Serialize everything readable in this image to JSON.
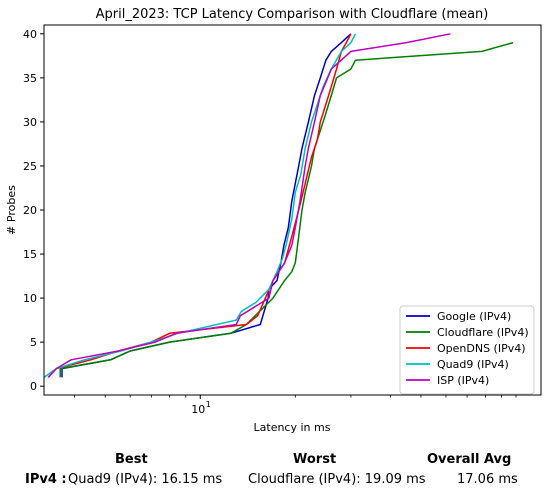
{
  "chart_data": {
    "type": "line",
    "title": "April_2023: TCP Latency Comparison with Cloudflare (mean)",
    "xlabel": "Latency in ms",
    "ylabel": "# Probes",
    "xscale": "log",
    "xlim": [
      3.2,
      120
    ],
    "ylim": [
      -1,
      41
    ],
    "yticks": [
      0,
      5,
      10,
      15,
      20,
      25,
      30,
      35,
      40
    ],
    "xticks": [
      {
        "value": 10,
        "label": "10",
        "sup": "1"
      }
    ],
    "legend_position": "lower-right",
    "grid": false,
    "series": [
      {
        "name": "Google (IPv4)",
        "color": "#0000cc",
        "points": [
          [
            3.65,
            1
          ],
          [
            3.65,
            2
          ],
          [
            5.2,
            3
          ],
          [
            6,
            4
          ],
          [
            8,
            5
          ],
          [
            12.5,
            6
          ],
          [
            15.5,
            7
          ],
          [
            16.4,
            10
          ],
          [
            16.5,
            11
          ],
          [
            17.5,
            12
          ],
          [
            18,
            14
          ],
          [
            18.4,
            16
          ],
          [
            19,
            18
          ],
          [
            19.5,
            21
          ],
          [
            20.5,
            25
          ],
          [
            21,
            27
          ],
          [
            22,
            30
          ],
          [
            23,
            33
          ],
          [
            24,
            35
          ],
          [
            25,
            37
          ],
          [
            26,
            38
          ],
          [
            28,
            39
          ],
          [
            30,
            40
          ]
        ]
      },
      {
        "name": "Cloudflare (IPv4)",
        "color": "#008000",
        "points": [
          [
            3.6,
            1
          ],
          [
            3.6,
            2
          ],
          [
            5.2,
            3
          ],
          [
            6,
            4
          ],
          [
            8,
            5
          ],
          [
            12.5,
            6
          ],
          [
            14,
            7
          ],
          [
            17,
            10
          ],
          [
            18.5,
            12
          ],
          [
            19.5,
            13
          ],
          [
            20,
            14
          ],
          [
            20.5,
            17
          ],
          [
            21,
            20
          ],
          [
            21.5,
            22
          ],
          [
            22.5,
            25
          ],
          [
            23,
            27
          ],
          [
            24,
            29
          ],
          [
            25,
            31
          ],
          [
            26,
            33
          ],
          [
            27,
            35
          ],
          [
            30,
            36
          ],
          [
            31,
            37
          ],
          [
            78,
            38
          ],
          [
            98,
            39
          ]
        ]
      },
      {
        "name": "OpenDNS (IPv4)",
        "color": "#ff0000",
        "points": [
          [
            3.3,
            1
          ],
          [
            3.5,
            2
          ],
          [
            4.5,
            3
          ],
          [
            5.5,
            4
          ],
          [
            7,
            5
          ],
          [
            8,
            6
          ],
          [
            14,
            7
          ],
          [
            15.2,
            8
          ],
          [
            17,
            12
          ],
          [
            18.5,
            14
          ],
          [
            19.5,
            17
          ],
          [
            20.5,
            20
          ],
          [
            21.5,
            23
          ],
          [
            22.5,
            26
          ],
          [
            23.5,
            28
          ],
          [
            24,
            30
          ],
          [
            24.5,
            31
          ],
          [
            25.5,
            33
          ],
          [
            26.5,
            35
          ],
          [
            27,
            36
          ],
          [
            28,
            38
          ],
          [
            29,
            39
          ],
          [
            30,
            40
          ]
        ]
      },
      {
        "name": "Quad9 (IPv4)",
        "color": "#00bfbf",
        "points": [
          [
            3.2,
            1
          ],
          [
            3.5,
            2
          ],
          [
            4.3,
            3
          ],
          [
            5.6,
            4
          ],
          [
            7,
            5
          ],
          [
            8.5,
            6
          ],
          [
            13,
            7.5
          ],
          [
            13.5,
            8.5
          ],
          [
            15,
            9.5
          ],
          [
            16.5,
            11
          ],
          [
            17.5,
            13
          ],
          [
            18.2,
            14.5
          ],
          [
            18.7,
            16
          ],
          [
            19.5,
            19
          ],
          [
            20,
            22
          ],
          [
            20.8,
            24
          ],
          [
            21.5,
            27
          ],
          [
            22.5,
            30
          ],
          [
            23,
            31
          ],
          [
            24.5,
            34
          ],
          [
            26,
            36
          ],
          [
            28,
            38
          ],
          [
            30,
            39
          ],
          [
            31,
            40
          ]
        ]
      },
      {
        "name": "ISP (IPv4)",
        "color": "#bf00bf",
        "points": [
          [
            3.3,
            1
          ],
          [
            3.5,
            2
          ],
          [
            3.9,
            3
          ],
          [
            5.5,
            4
          ],
          [
            7.2,
            5
          ],
          [
            8.4,
            6
          ],
          [
            13,
            7
          ],
          [
            13.4,
            8
          ],
          [
            16.5,
            10
          ],
          [
            17,
            12
          ],
          [
            18.5,
            14
          ],
          [
            19.5,
            16
          ],
          [
            20,
            18
          ],
          [
            20.7,
            21
          ],
          [
            21.5,
            25
          ],
          [
            22,
            27
          ],
          [
            23,
            30
          ],
          [
            24,
            33
          ],
          [
            25,
            34.5
          ],
          [
            26,
            36
          ],
          [
            30,
            38
          ],
          [
            45,
            39
          ],
          [
            62,
            40
          ]
        ]
      }
    ]
  },
  "summary": {
    "header_best": "Best",
    "header_worst": "Worst",
    "header_avg": "Overall Avg",
    "row_label": "IPv4 :",
    "best_value": "Quad9 (IPv4): 16.15 ms",
    "worst_value": "Cloudflare (IPv4): 19.09 ms",
    "avg_value": "17.06 ms"
  }
}
